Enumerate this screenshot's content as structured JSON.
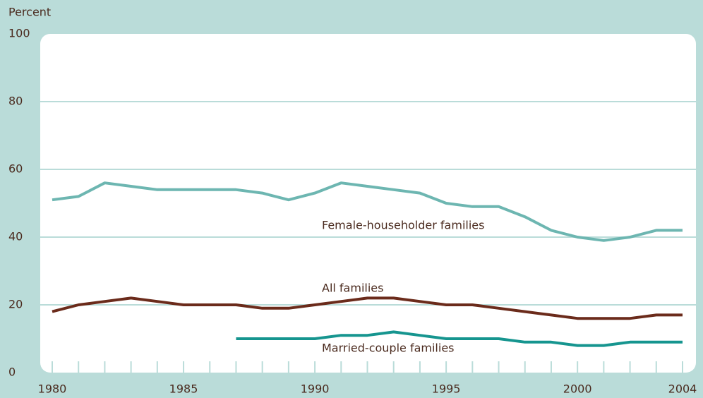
{
  "chart_data": {
    "type": "line",
    "y_axis_label": "Percent",
    "x": [
      1980,
      1981,
      1982,
      1983,
      1984,
      1985,
      1986,
      1987,
      1988,
      1989,
      1990,
      1991,
      1992,
      1993,
      1994,
      1995,
      1996,
      1997,
      1998,
      1999,
      2000,
      2001,
      2002,
      2003,
      2004
    ],
    "series": [
      {
        "name": "Female-householder families",
        "color": "#6db6b1",
        "values": [
          51,
          52,
          56,
          55,
          54,
          54,
          54,
          54,
          53,
          51,
          53,
          56,
          55,
          54,
          53,
          50,
          49,
          49,
          46,
          42,
          40,
          39,
          40,
          42,
          42
        ]
      },
      {
        "name": "All families",
        "color": "#6b2b1b",
        "values": [
          18,
          20,
          21,
          22,
          21,
          20,
          20,
          20,
          19,
          19,
          20,
          21,
          22,
          22,
          21,
          20,
          20,
          19,
          18,
          17,
          16,
          16,
          16,
          17,
          17
        ]
      },
      {
        "name": "Married-couple families",
        "color": "#16958f",
        "values": [
          null,
          null,
          null,
          null,
          null,
          null,
          null,
          10,
          10,
          10,
          10,
          11,
          11,
          12,
          11,
          10,
          10,
          10,
          9,
          9,
          8,
          8,
          9,
          9,
          9
        ]
      }
    ],
    "xlim": [
      1980,
      2004
    ],
    "xticks": [
      1980,
      1985,
      1990,
      1995,
      2000,
      2004
    ],
    "ylim": [
      0,
      100
    ],
    "yticks": [
      0,
      20,
      40,
      60,
      80,
      100
    ],
    "grid": true
  }
}
